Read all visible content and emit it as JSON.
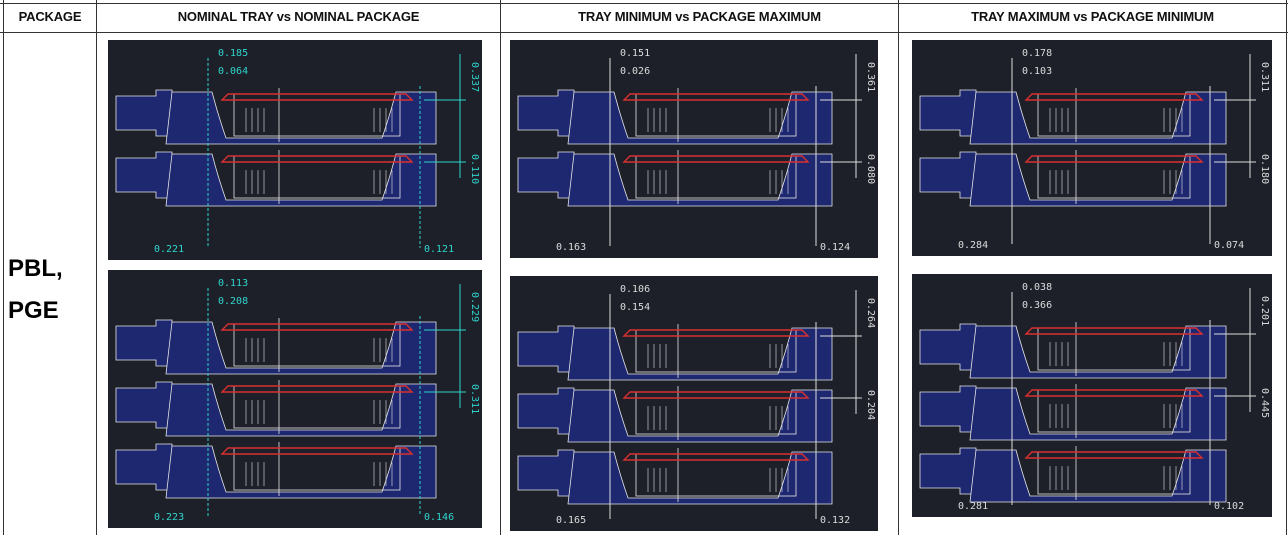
{
  "headers": {
    "package": "PACKAGE",
    "col1": "NOMINAL TRAY vs NOMINAL PACKAGE",
    "col2": "TRAY MINIMUM vs PACKAGE MAXIMUM",
    "col3": "TRAY MAXIMUM vs PACKAGE MINIMUM"
  },
  "package": {
    "line1": "PBL,",
    "line2": "PGE"
  },
  "panels": {
    "p1": {
      "a": "0.185",
      "b": "0.064",
      "c": "0.337",
      "d": "0.110",
      "e": "0.221",
      "f": "0.121"
    },
    "p2": {
      "a": "0.151",
      "b": "0.026",
      "c": "0.361",
      "d": "0.080",
      "e": "0.163",
      "f": "0.124"
    },
    "p3": {
      "a": "0.178",
      "b": "0.103",
      "c": "0.311",
      "d": "0.180",
      "e": "0.284",
      "f": "0.074"
    },
    "p4": {
      "a": "0.113",
      "b": "0.208",
      "c": "0.229",
      "d": "0.311",
      "e": "0.223",
      "f": "0.146"
    },
    "p5": {
      "a": "0.106",
      "b": "0.154",
      "c": "0.264",
      "d": "0.204",
      "e": "0.165",
      "f": "0.132"
    },
    "p6": {
      "a": "0.038",
      "b": "0.366",
      "c": "0.201",
      "d": "0.445",
      "e": "0.281",
      "f": "0.102"
    }
  },
  "colors": {
    "background": "#1d2029",
    "tray": "#1e2870",
    "outline": "#e6e6e6",
    "package": "#d93030",
    "dimension_nominal": "#2fd5cc",
    "dimension_other": "#dcdcdc"
  }
}
